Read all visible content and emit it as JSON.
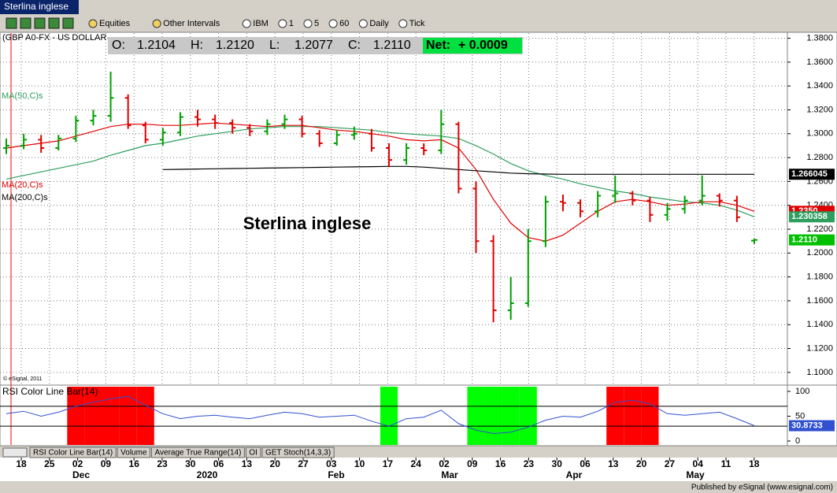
{
  "window_title": "Sterlina inglese",
  "toolbar": [
    "Equities",
    "Other Intervals",
    "IBM",
    "1",
    "5",
    "60",
    "Daily",
    "Tick"
  ],
  "symbol": "(GBP A0-FX - US DOLLAR",
  "quote": [
    {
      "label": "O:",
      "value": "1.2104"
    },
    {
      "label": "H:",
      "value": "1.2120"
    },
    {
      "label": "L:",
      "value": "1.2077"
    },
    {
      "label": "C:",
      "value": "1.2110"
    }
  ],
  "net": {
    "label": "Net:",
    "value": "+ 0.0009"
  },
  "copyright": "© eSignal, 2011",
  "tabs": [
    "RSI Color Line Bar(14)",
    "Volume",
    "Average True Range(14)",
    "OI",
    "GET Stoch(14,3,3)"
  ],
  "xaxis": {
    "ticks": [
      "18",
      "25",
      "02",
      "09",
      "16",
      "23",
      "30",
      "06",
      "13",
      "20",
      "27",
      "03",
      "10",
      "17",
      "24",
      "02",
      "09",
      "16",
      "23",
      "30",
      "06",
      "13",
      "20",
      "27",
      "04",
      "11",
      "18"
    ],
    "months": [
      "Dec",
      "2020",
      "Feb",
      "Mar",
      "Apr",
      "May"
    ]
  },
  "footer": "Published by eSignal (www.esignal.com)",
  "chart_data": [
    {
      "type": "ohlc",
      "title": "Sterlina inglese",
      "up_color": "#00a000",
      "down_color": "#e00000",
      "open": [
        1.288,
        1.29,
        1.295,
        1.288,
        1.296,
        1.311,
        1.315,
        1.33,
        1.307,
        1.295,
        1.301,
        1.314,
        1.312,
        1.309,
        1.305,
        1.302,
        1.308,
        1.312,
        1.3,
        1.292,
        1.299,
        1.3,
        1.288,
        1.278,
        1.288,
        1.286,
        1.308,
        1.254,
        1.21,
        1.152,
        1.158,
        1.21,
        1.243,
        1.242,
        1.235,
        1.248,
        1.25,
        1.244,
        1.232,
        1.237,
        1.244,
        1.248,
        1.244,
        1.2104
      ],
      "high": [
        1.296,
        1.3,
        1.299,
        1.299,
        1.315,
        1.32,
        1.352,
        1.333,
        1.31,
        1.305,
        1.318,
        1.32,
        1.316,
        1.312,
        1.308,
        1.312,
        1.316,
        1.315,
        1.303,
        1.303,
        1.306,
        1.304,
        1.292,
        1.292,
        1.292,
        1.32,
        1.31,
        1.26,
        1.215,
        1.18,
        1.22,
        1.248,
        1.249,
        1.245,
        1.252,
        1.265,
        1.252,
        1.247,
        1.242,
        1.248,
        1.265,
        1.25,
        1.248,
        1.212
      ],
      "low": [
        1.283,
        1.287,
        1.284,
        1.286,
        1.293,
        1.307,
        1.31,
        1.304,
        1.292,
        1.29,
        1.298,
        1.306,
        1.304,
        1.3,
        1.298,
        1.299,
        1.304,
        1.297,
        1.289,
        1.29,
        1.295,
        1.285,
        1.272,
        1.274,
        1.282,
        1.283,
        1.25,
        1.2,
        1.142,
        1.144,
        1.155,
        1.205,
        1.235,
        1.23,
        1.23,
        1.242,
        1.24,
        1.226,
        1.227,
        1.233,
        1.24,
        1.239,
        1.226,
        1.2077
      ],
      "close": [
        1.29,
        1.295,
        1.288,
        1.296,
        1.311,
        1.315,
        1.33,
        1.307,
        1.295,
        1.301,
        1.314,
        1.312,
        1.309,
        1.305,
        1.302,
        1.308,
        1.312,
        1.3,
        1.292,
        1.299,
        1.3,
        1.288,
        1.278,
        1.288,
        1.286,
        1.308,
        1.254,
        1.21,
        1.152,
        1.158,
        1.21,
        1.243,
        1.242,
        1.235,
        1.248,
        1.25,
        1.244,
        1.232,
        1.237,
        1.244,
        1.248,
        1.244,
        1.23,
        1.211
      ],
      "series": [
        {
          "name": "MA(50,C)s",
          "color": "#2e9e5e",
          "values": [
            1.262,
            1.265,
            1.268,
            1.271,
            1.274,
            1.277,
            1.282,
            1.286,
            1.29,
            1.292,
            1.295,
            1.298,
            1.3,
            1.302,
            1.304,
            1.305,
            1.306,
            1.306,
            1.306,
            1.305,
            1.304,
            1.303,
            1.301,
            1.3,
            1.299,
            1.298,
            1.296,
            1.29,
            1.283,
            1.275,
            1.269,
            1.265,
            1.262,
            1.258,
            1.255,
            1.252,
            1.25,
            1.247,
            1.245,
            1.243,
            1.242,
            1.24,
            1.236,
            1.2304
          ]
        },
        {
          "name": "MA(20,C)s",
          "color": "#e00000",
          "values": [
            1.288,
            1.29,
            1.292,
            1.294,
            1.298,
            1.302,
            1.306,
            1.308,
            1.308,
            1.307,
            1.307,
            1.308,
            1.309,
            1.308,
            1.307,
            1.306,
            1.307,
            1.307,
            1.305,
            1.303,
            1.302,
            1.3,
            1.298,
            1.295,
            1.294,
            1.295,
            1.288,
            1.27,
            1.245,
            1.225,
            1.213,
            1.21,
            1.215,
            1.225,
            1.235,
            1.243,
            1.245,
            1.243,
            1.24,
            1.241,
            1.243,
            1.243,
            1.24,
            1.235
          ]
        },
        {
          "name": "MA(200,C)s",
          "color": "#000000",
          "values": [
            null,
            null,
            null,
            null,
            null,
            null,
            null,
            null,
            null,
            1.27,
            1.2702,
            1.2704,
            1.2706,
            1.2708,
            1.271,
            1.2712,
            1.2714,
            1.2716,
            1.2718,
            1.272,
            1.2722,
            1.2724,
            1.2726,
            1.2726,
            1.272,
            1.271,
            1.27,
            1.269,
            1.268,
            1.267,
            1.2665,
            1.2662,
            1.266,
            1.266,
            1.266,
            1.266,
            1.266,
            1.266,
            1.266,
            1.266,
            1.266,
            1.266,
            1.266,
            1.266
          ]
        }
      ],
      "last_labels": [
        {
          "value": 1.266045,
          "label": "1.266045",
          "color": "#000000"
        },
        {
          "value": 1.235,
          "label": "1.2350",
          "color": "#e00000"
        },
        {
          "value": 1.230358,
          "label": "1.230358",
          "color": "#2e9e5e"
        },
        {
          "value": 1.211,
          "label": "1.2110",
          "color": "#00c000"
        }
      ],
      "ylim": [
        1.09,
        1.385
      ],
      "yticks": [
        {
          "value": 1.38,
          "label": "1.3800"
        },
        {
          "value": 1.36,
          "label": "1.3600"
        },
        {
          "value": 1.34,
          "label": "1.3400"
        },
        {
          "value": 1.32,
          "label": "1.3200"
        },
        {
          "value": 1.3,
          "label": "1.3000"
        },
        {
          "value": 1.28,
          "label": "1.2800"
        },
        {
          "value": 1.26,
          "label": "1.2600"
        },
        {
          "value": 1.24,
          "label": "1.2400"
        },
        {
          "value": 1.22,
          "label": "1.2200"
        },
        {
          "value": 1.2,
          "label": "1.2000"
        },
        {
          "value": 1.18,
          "label": "1.1800"
        },
        {
          "value": 1.16,
          "label": "1.1600"
        },
        {
          "value": 1.14,
          "label": "1.1400"
        },
        {
          "value": 1.12,
          "label": "1.1200"
        },
        {
          "value": 1.1,
          "label": "1.1000"
        }
      ],
      "grid": true
    },
    {
      "type": "line",
      "title": "RSI Color Line Bar(14)",
      "over_color": "#ff0000",
      "under_color": "#00ff00",
      "series": [
        {
          "name": "RSI",
          "color": "#3050d0",
          "values": [
            55,
            60,
            50,
            58,
            70,
            78,
            85,
            90,
            72,
            55,
            45,
            50,
            52,
            48,
            45,
            52,
            58,
            55,
            48,
            50,
            52,
            40,
            30,
            45,
            48,
            62,
            35,
            22,
            15,
            18,
            28,
            42,
            50,
            48,
            60,
            78,
            82,
            75,
            55,
            52,
            55,
            58,
            45,
            31
          ]
        }
      ],
      "bands": [
        30,
        70
      ],
      "last_label": {
        "value": 30.8733,
        "label": "30.8733"
      },
      "ylim": [
        -9.5,
        111
      ],
      "yticks": [
        0,
        50,
        100
      ]
    }
  ]
}
